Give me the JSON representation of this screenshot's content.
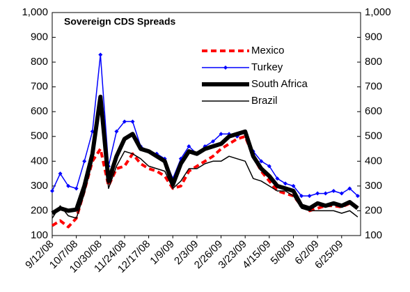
{
  "chart_data": {
    "type": "line",
    "title": "Sovereign CDS Spreads",
    "categories": [
      "9/12/08",
      null,
      null,
      "10/7/08",
      null,
      null,
      "10/30/08",
      null,
      null,
      "11/24/08",
      null,
      null,
      "12/17/08",
      null,
      null,
      "1/9/09",
      null,
      null,
      "2/3/09",
      null,
      null,
      "2/26/09",
      null,
      null,
      "3/23/09",
      null,
      null,
      "4/15/09",
      null,
      null,
      "5/8/09",
      null,
      null,
      "6/2/09",
      null,
      null,
      "6/25/09",
      null,
      null
    ],
    "series": [
      {
        "name": "Mexico",
        "color": "#ff0000",
        "style": "dashed",
        "width": 4,
        "values": [
          140,
          160,
          135,
          170,
          280,
          400,
          450,
          300,
          370,
          380,
          430,
          390,
          370,
          360,
          340,
          290,
          300,
          360,
          380,
          400,
          420,
          450,
          470,
          490,
          500,
          420,
          360,
          320,
          280,
          270,
          260,
          220,
          200,
          210,
          220,
          220,
          215,
          230,
          215
        ]
      },
      {
        "name": "Turkey",
        "color": "#0000ff",
        "style": "markers",
        "width": 1.5,
        "values": [
          280,
          350,
          300,
          290,
          400,
          520,
          830,
          380,
          520,
          560,
          560,
          460,
          440,
          430,
          410,
          330,
          410,
          460,
          430,
          460,
          480,
          510,
          510,
          500,
          520,
          440,
          400,
          380,
          330,
          310,
          300,
          260,
          260,
          270,
          270,
          280,
          270,
          290,
          260
        ]
      },
      {
        "name": "South Africa",
        "color": "#000000",
        "style": "solid",
        "width": 6,
        "values": [
          190,
          210,
          200,
          205,
          300,
          430,
          660,
          320,
          420,
          490,
          510,
          450,
          440,
          420,
          400,
          305,
          390,
          440,
          430,
          450,
          460,
          470,
          500,
          510,
          520,
          420,
          370,
          340,
          300,
          290,
          280,
          220,
          210,
          230,
          220,
          230,
          220,
          235,
          210
        ]
      },
      {
        "name": "Brazil",
        "color": "#000000",
        "style": "solid",
        "width": 1.5,
        "values": [
          170,
          220,
          180,
          170,
          270,
          400,
          620,
          290,
          380,
          440,
          430,
          410,
          380,
          370,
          360,
          290,
          320,
          370,
          370,
          390,
          400,
          400,
          420,
          410,
          400,
          330,
          320,
          300,
          280,
          280,
          260,
          210,
          200,
          200,
          200,
          200,
          190,
          200,
          175
        ]
      }
    ],
    "ylim": [
      100,
      1000
    ],
    "yticks": [
      100,
      200,
      300,
      400,
      500,
      600,
      700,
      800,
      900,
      {
        "value": 1000,
        "label": "1,000"
      }
    ],
    "y2lim": [
      100,
      1000
    ],
    "y2ticks": [
      100,
      200,
      300,
      400,
      500,
      600,
      700,
      800,
      900,
      {
        "value": 1000,
        "label": "1,000"
      }
    ],
    "grid": false
  }
}
